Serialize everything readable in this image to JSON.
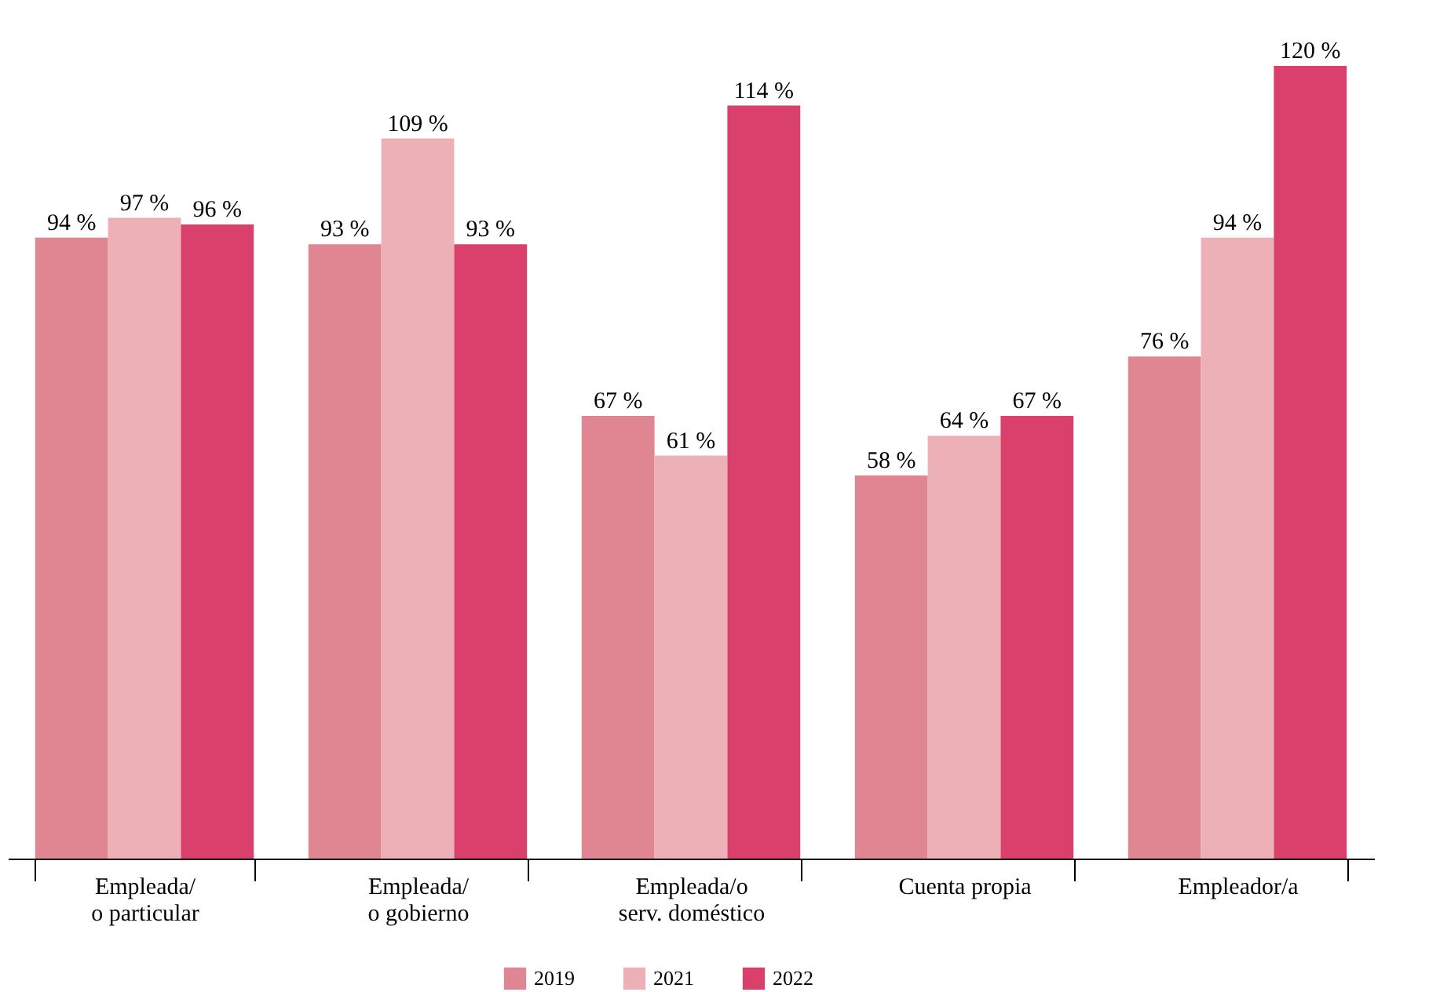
{
  "chart_data": {
    "type": "bar",
    "categories": [
      "Empleada/\no particular",
      "Empleada/\no gobierno",
      "Empleada/o\nserv. doméstico",
      "Cuenta propia",
      "Empleador/a"
    ],
    "series": [
      {
        "name": "2019",
        "color": "#e08592",
        "values": [
          94,
          93,
          67,
          58,
          76
        ],
        "value_labels": [
          "94 %",
          "93 %",
          "67 %",
          "58 %",
          "76 %"
        ]
      },
      {
        "name": "2021",
        "color": "#ecb0b6",
        "values": [
          97,
          109,
          61,
          64,
          94
        ],
        "value_labels": [
          "97 %",
          "109 %",
          "61 %",
          "64 %",
          "94 %"
        ]
      },
      {
        "name": "2022",
        "color": "#d9406b",
        "values": [
          96,
          93,
          114,
          67,
          120
        ],
        "value_labels": [
          "96 %",
          "93 %",
          "114 %",
          "67 %",
          "120 %"
        ]
      }
    ],
    "grid": false,
    "legend": "bottom",
    "tick_labels": "x"
  }
}
